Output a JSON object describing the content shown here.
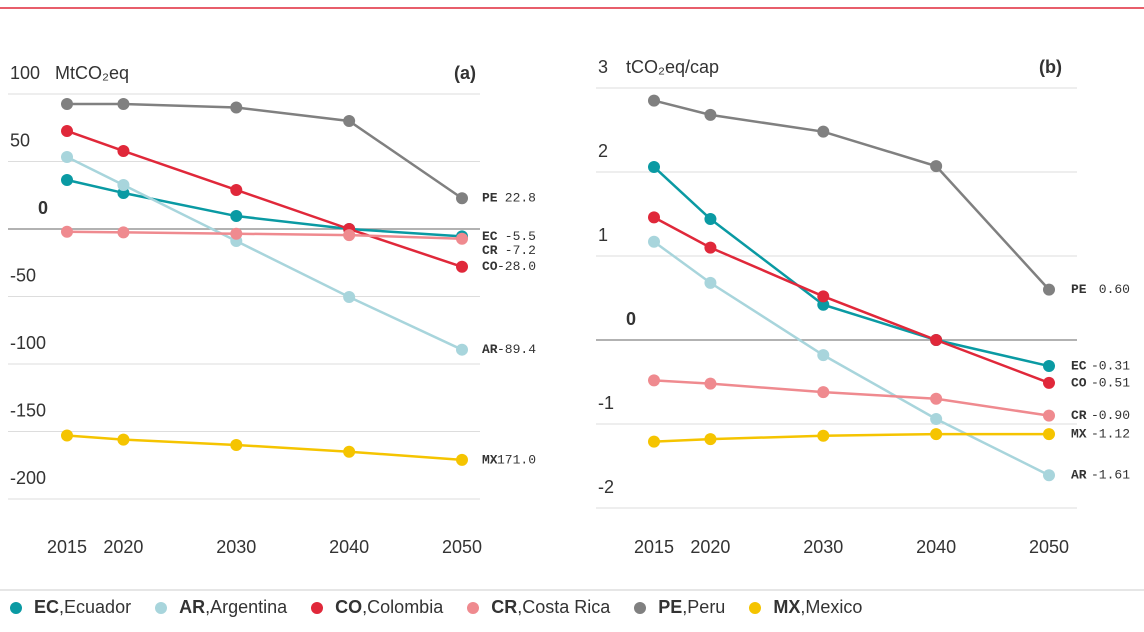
{
  "chart_data": [
    {
      "type": "line",
      "title": "(a)",
      "y_label": "MtCO₂eq",
      "x": [
        2015,
        2020,
        2030,
        2040,
        2050
      ],
      "xlim": [
        2015,
        2050
      ],
      "xticks": [
        2015,
        2020,
        2030,
        2040,
        2050
      ],
      "ylim": [
        -200,
        100
      ],
      "yticks": [
        -200,
        -150,
        -100,
        -50,
        0,
        50,
        100
      ],
      "grid": true,
      "series": [
        {
          "code": "EC",
          "name": "Ecuador",
          "color": "#0a9aa3",
          "values": [
            36.3,
            26.7,
            9.6,
            0,
            -5.5
          ],
          "value_labels": [
            null,
            null,
            null,
            null,
            "-5.5"
          ]
        },
        {
          "code": "AR",
          "name": "Argentina",
          "color": "#a8d5dc",
          "values": [
            53.3,
            32.6,
            -8.9,
            -50.4,
            -89.4
          ],
          "value_labels": [
            null,
            null,
            null,
            null,
            "-89.4"
          ]
        },
        {
          "code": "CO",
          "name": "Colombia",
          "color": "#e0283a",
          "values": [
            72.6,
            57.8,
            28.9,
            0,
            -28.0
          ],
          "value_labels": [
            null,
            null,
            null,
            null,
            "-28.0"
          ]
        },
        {
          "code": "CR",
          "name": "Costa Rica",
          "color": "#ef8a8f",
          "values": [
            -2,
            -2.5,
            -3.5,
            -4.5,
            -7.2
          ],
          "value_labels": [
            null,
            null,
            null,
            null,
            "-7.2"
          ]
        },
        {
          "code": "PE",
          "name": "Peru",
          "color": "#808080",
          "values": [
            92.6,
            92.6,
            90,
            80,
            22.8
          ],
          "value_labels": [
            null,
            null,
            null,
            null,
            "22.8"
          ]
        },
        {
          "code": "MX",
          "name": "Mexico",
          "color": "#f5c400",
          "values": [
            -153,
            -156,
            -160,
            -165,
            -171.0
          ],
          "value_labels": [
            null,
            null,
            null,
            null,
            "-171.0"
          ]
        }
      ]
    },
    {
      "type": "line",
      "title": "(b)",
      "y_label": "tCO₂eq/cap",
      "x": [
        2015,
        2020,
        2030,
        2040,
        2050
      ],
      "xlim": [
        2015,
        2050
      ],
      "xticks": [
        2015,
        2020,
        2030,
        2040,
        2050
      ],
      "ylim": [
        -2,
        3
      ],
      "yticks": [
        -2,
        -1,
        0,
        1,
        2,
        3
      ],
      "grid": true,
      "series": [
        {
          "code": "EC",
          "name": "Ecuador",
          "color": "#0a9aa3",
          "values": [
            2.06,
            1.44,
            0.42,
            0,
            -0.31
          ],
          "value_labels": [
            null,
            null,
            null,
            null,
            "-0.31"
          ]
        },
        {
          "code": "AR",
          "name": "Argentina",
          "color": "#a8d5dc",
          "values": [
            1.17,
            0.68,
            -0.18,
            -0.94,
            -1.61
          ],
          "value_labels": [
            null,
            null,
            null,
            null,
            "-1.61"
          ]
        },
        {
          "code": "CO",
          "name": "Colombia",
          "color": "#e0283a",
          "values": [
            1.46,
            1.1,
            0.52,
            0,
            -0.51
          ],
          "value_labels": [
            null,
            null,
            null,
            null,
            "-0.51"
          ]
        },
        {
          "code": "CR",
          "name": "Costa Rica",
          "color": "#ef8a8f",
          "values": [
            -0.48,
            -0.52,
            -0.62,
            -0.7,
            -0.9
          ],
          "value_labels": [
            null,
            null,
            null,
            null,
            "-0.90"
          ]
        },
        {
          "code": "PE",
          "name": "Peru",
          "color": "#808080",
          "values": [
            2.85,
            2.68,
            2.48,
            2.07,
            0.6
          ],
          "value_labels": [
            null,
            null,
            null,
            null,
            "0.60"
          ]
        },
        {
          "code": "MX",
          "name": "Mexico",
          "color": "#f5c400",
          "values": [
            -1.21,
            -1.18,
            -1.14,
            -1.12,
            -1.12
          ],
          "value_labels": [
            null,
            null,
            null,
            null,
            "-1.12"
          ]
        }
      ]
    }
  ]
}
